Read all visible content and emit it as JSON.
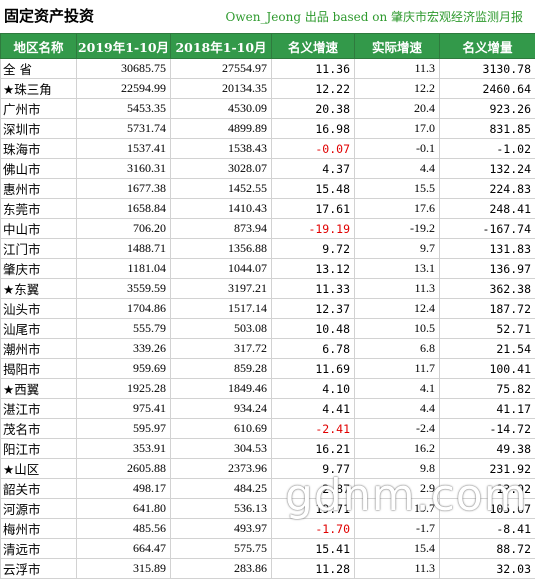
{
  "header": {
    "title": "固定资产投资",
    "source": "Owen_Jeong 出品 based on 肇庆市宏观经济监测月报"
  },
  "table": {
    "columns": [
      "地区名称",
      "2019年1-10月",
      "2018年1-10月",
      "名义增速",
      "实际增速",
      "名义增量"
    ],
    "rows": [
      [
        "全  省",
        "30685.75",
        "27554.97",
        "11.36",
        "11.3",
        "3130.78"
      ],
      [
        "★珠三角",
        "22594.99",
        "20134.35",
        "12.22",
        "12.2",
        "2460.64"
      ],
      [
        "广州市",
        "5453.35",
        "4530.09",
        "20.38",
        "20.4",
        "923.26"
      ],
      [
        "深圳市",
        "5731.74",
        "4899.89",
        "16.98",
        "17.0",
        "831.85"
      ],
      [
        "珠海市",
        "1537.41",
        "1538.43",
        "-0.07",
        "-0.1",
        "-1.02"
      ],
      [
        "佛山市",
        "3160.31",
        "3028.07",
        "4.37",
        "4.4",
        "132.24"
      ],
      [
        "惠州市",
        "1677.38",
        "1452.55",
        "15.48",
        "15.5",
        "224.83"
      ],
      [
        "东莞市",
        "1658.84",
        "1410.43",
        "17.61",
        "17.6",
        "248.41"
      ],
      [
        "中山市",
        "706.20",
        "873.94",
        "-19.19",
        "-19.2",
        "-167.74"
      ],
      [
        "江门市",
        "1488.71",
        "1356.88",
        "9.72",
        "9.7",
        "131.83"
      ],
      [
        "肇庆市",
        "1181.04",
        "1044.07",
        "13.12",
        "13.1",
        "136.97"
      ],
      [
        "★东翼",
        "3559.59",
        "3197.21",
        "11.33",
        "11.3",
        "362.38"
      ],
      [
        "汕头市",
        "1704.86",
        "1517.14",
        "12.37",
        "12.4",
        "187.72"
      ],
      [
        "汕尾市",
        "555.79",
        "503.08",
        "10.48",
        "10.5",
        "52.71"
      ],
      [
        "潮州市",
        "339.26",
        "317.72",
        "6.78",
        "6.8",
        "21.54"
      ],
      [
        "揭阳市",
        "959.69",
        "859.28",
        "11.69",
        "11.7",
        "100.41"
      ],
      [
        "★西翼",
        "1925.28",
        "1849.46",
        "4.10",
        "4.1",
        "75.82"
      ],
      [
        "湛江市",
        "975.41",
        "934.24",
        "4.41",
        "4.4",
        "41.17"
      ],
      [
        "茂名市",
        "595.97",
        "610.69",
        "-2.41",
        "-2.4",
        "-14.72"
      ],
      [
        "阳江市",
        "353.91",
        "304.53",
        "16.21",
        "16.2",
        "49.38"
      ],
      [
        "★山区",
        "2605.88",
        "2373.96",
        "9.77",
        "9.8",
        "231.92"
      ],
      [
        "韶关市",
        "498.17",
        "484.25",
        "2.87",
        "2.9",
        "13.92"
      ],
      [
        "河源市",
        "641.80",
        "536.13",
        "19.71",
        "19.7",
        "105.67"
      ],
      [
        "梅州市",
        "485.56",
        "493.97",
        "-1.70",
        "-1.7",
        "-8.41"
      ],
      [
        "清远市",
        "664.47",
        "575.75",
        "15.41",
        "15.4",
        "88.72"
      ],
      [
        "云浮市",
        "315.89",
        "283.86",
        "11.28",
        "11.3",
        "32.03"
      ]
    ]
  },
  "watermark": "gdnm.com",
  "colors": {
    "header_bg": "#33994a",
    "negative": "#e00000",
    "source_text": "#2e9a2e"
  }
}
